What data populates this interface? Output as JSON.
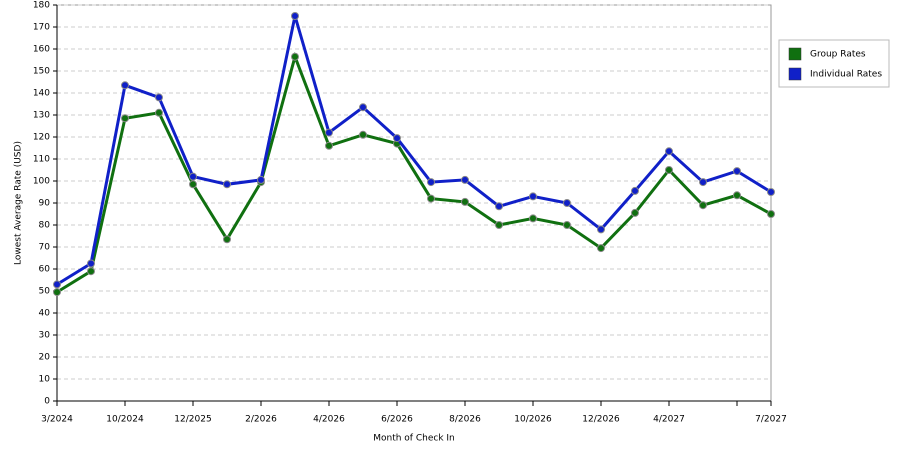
{
  "chart_data": {
    "type": "line",
    "x_label": "Month of Check In",
    "y_label": "Lowest Average Rate (USD)",
    "categories": [
      "3/2024",
      null,
      "10/2024",
      null,
      "12/2025",
      null,
      "2/2026",
      null,
      "4/2026",
      null,
      "6/2026",
      null,
      "8/2026",
      null,
      "10/2026",
      null,
      "12/2026",
      null,
      "4/2027",
      null,
      null,
      "7/2027"
    ],
    "series": [
      {
        "name": "Group Rates",
        "color": "#107010",
        "values": [
          49.5,
          59,
          128.5,
          131,
          98.5,
          73.5,
          99.5,
          156.5,
          116,
          121,
          117,
          92,
          90.5,
          80,
          83,
          80,
          69.5,
          85.5,
          105,
          89,
          93.5,
          85
        ]
      },
      {
        "name": "Individual Rates",
        "color": "#1020c8",
        "values": [
          53,
          62.5,
          143.5,
          138,
          102,
          98.5,
          100.5,
          175,
          122,
          133.5,
          119.5,
          99.5,
          100.5,
          88.5,
          93,
          90,
          78,
          95.5,
          113.5,
          99.5,
          104.5,
          95
        ]
      }
    ],
    "ylim": [
      0,
      180
    ],
    "yticks": [
      0,
      10,
      20,
      30,
      40,
      50,
      60,
      70,
      80,
      90,
      100,
      110,
      120,
      130,
      140,
      150,
      160,
      170,
      180
    ],
    "grid": true,
    "legend": "right"
  }
}
